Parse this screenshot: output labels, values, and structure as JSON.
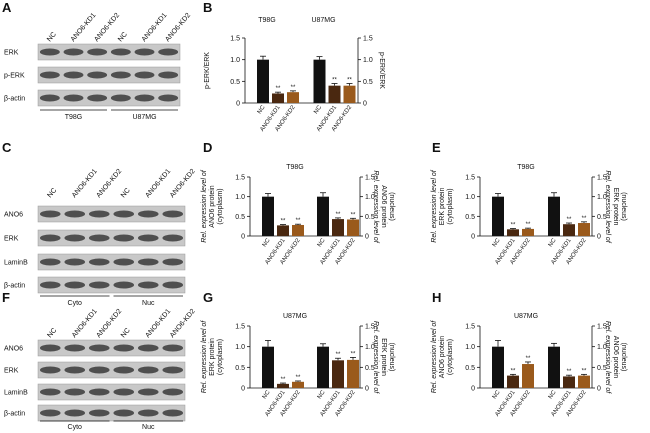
{
  "blots": [
    {
      "panel": "A",
      "lanes": [
        "NC",
        "ANO6-KD1",
        "ANO6-KD2",
        "NC",
        "ANO6-KD1",
        "ANO6-KD2"
      ],
      "rows": [
        "ERK",
        "p-ERK",
        "β-actin"
      ],
      "groups": [
        "T98G",
        "U87MG"
      ]
    },
    {
      "panel": "C",
      "lanes": [
        "NC",
        "ANO6-KD1",
        "ANO6-KD2",
        "NC",
        "ANO6-KD1",
        "ANO6-KD2"
      ],
      "rows": [
        "ANO6",
        "ERK",
        "LaminB",
        "β-actin"
      ],
      "groups": [
        "Cyto",
        "Nuc"
      ]
    },
    {
      "panel": "F",
      "lanes": [
        "NC",
        "ANO6-KD1",
        "ANO6-KD2",
        "NC",
        "ANO6-KD1",
        "ANO6-KD2"
      ],
      "rows": [
        "ANO6",
        "ERK",
        "LaminB",
        "β-actin"
      ],
      "groups": [
        "Cyto",
        "Nuc"
      ]
    }
  ],
  "chart_data": [
    {
      "type": "bar",
      "panel": "B",
      "colors": [
        "#111111",
        "#4a2810",
        "#9a5a1c"
      ],
      "ylim": [
        0,
        1.5
      ],
      "yticks": [
        0,
        0.5,
        {
          "value": 1,
          "label": "1.0"
        },
        1.5
      ],
      "y2lim": [
        0,
        1.5
      ],
      "y2ticks": [
        0,
        0.5,
        {
          "value": 1,
          "label": "1.0"
        },
        1.5
      ],
      "groups": [
        {
          "title": "T98G",
          "axis": "y",
          "ylabel": [
            "p-ERK/ERK"
          ],
          "categories": [
            "NC",
            "ANO6-KD1",
            "ANO6-KD2"
          ],
          "values": [
            1.0,
            0.22,
            0.25
          ],
          "errors": [
            0.08,
            0.03,
            0.03
          ],
          "annotations": [
            null,
            "**",
            "**"
          ]
        },
        {
          "title": "U87MG",
          "axis": "y2",
          "ylabel": [
            "p-ERK/ERK"
          ],
          "categories": [
            "NC",
            "ANO6-KD1",
            "ANO6-KD2"
          ],
          "values": [
            1.0,
            0.4,
            0.4
          ],
          "errors": [
            0.07,
            0.05,
            0.05
          ],
          "annotations": [
            null,
            "**",
            "**"
          ]
        }
      ]
    },
    {
      "type": "bar",
      "panel": "D",
      "title": "T98G",
      "colors": [
        "#111111",
        "#4a2810",
        "#9a5a1c"
      ],
      "ylim": [
        0,
        1.5
      ],
      "yticks": [
        0,
        0.5,
        {
          "value": 1,
          "label": "1.0"
        },
        1.5
      ],
      "y2lim": [
        0,
        1.5
      ],
      "y2ticks": [
        0,
        0.5,
        {
          "value": 1,
          "label": "1.0"
        },
        1.5
      ],
      "groups": [
        {
          "axis": "y",
          "ylabel": [
            "Rel. expression level of",
            "ANO6 protein",
            "(cytoplasm)"
          ],
          "categories": [
            "NC",
            "ANO6-KD1",
            "ANO6-KD2"
          ],
          "values": [
            1.0,
            0.27,
            0.28
          ],
          "errors": [
            0.08,
            0.02,
            0.02
          ],
          "annotations": [
            null,
            "**",
            "**"
          ]
        },
        {
          "axis": "y2",
          "ylabel": [
            "Rel. expression level of",
            "ANO6 protein",
            "(nucleus)"
          ],
          "categories": [
            "NC",
            "ANO6-KD1",
            "ANO6-KD2"
          ],
          "values": [
            1.0,
            0.43,
            0.42
          ],
          "errors": [
            0.1,
            0.03,
            0.03
          ],
          "annotations": [
            null,
            "**",
            "**"
          ]
        }
      ]
    },
    {
      "type": "bar",
      "panel": "E",
      "title": "T98G",
      "colors": [
        "#111111",
        "#4a2810",
        "#9a5a1c"
      ],
      "ylim": [
        0,
        1.5
      ],
      "yticks": [
        0,
        0.5,
        {
          "value": 1,
          "label": "1.0"
        },
        1.5
      ],
      "y2lim": [
        0,
        1.5
      ],
      "y2ticks": [
        0,
        0.5,
        {
          "value": 1,
          "label": "1.0"
        },
        1.5
      ],
      "groups": [
        {
          "axis": "y",
          "ylabel": [
            "Rel. expression level of",
            "ERK protein",
            "(cytoplasm)"
          ],
          "categories": [
            "NC",
            "ANO6-KD1",
            "ANO6-KD2"
          ],
          "values": [
            1.0,
            0.17,
            0.18
          ],
          "errors": [
            0.08,
            0.02,
            0.02
          ],
          "annotations": [
            null,
            "**",
            "**"
          ]
        },
        {
          "axis": "y2",
          "ylabel": [
            "Rel. expression level of",
            "ERK protein",
            "(nucleus)"
          ],
          "categories": [
            "NC",
            "ANO6-KD1",
            "ANO6-KD2"
          ],
          "values": [
            1.0,
            0.3,
            0.33
          ],
          "errors": [
            0.1,
            0.03,
            0.03
          ],
          "annotations": [
            null,
            "**",
            "**"
          ]
        }
      ]
    },
    {
      "type": "bar",
      "panel": "G",
      "title": "U87MG",
      "colors": [
        "#111111",
        "#4a2810",
        "#9a5a1c"
      ],
      "ylim": [
        0,
        1.5
      ],
      "yticks": [
        0,
        0.5,
        {
          "value": 1,
          "label": "1.0"
        },
        1.5
      ],
      "y2lim": [
        0,
        1.5
      ],
      "y2ticks": [
        0,
        0.5,
        {
          "value": 1,
          "label": "1.0"
        },
        1.5
      ],
      "groups": [
        {
          "axis": "y",
          "ylabel": [
            "Rel. expression level of",
            "ERK protein",
            "(cytoplasm)"
          ],
          "categories": [
            "NC",
            "ANO6-KD1",
            "ANO6-KD2"
          ],
          "values": [
            1.0,
            0.1,
            0.15
          ],
          "errors": [
            0.15,
            0.02,
            0.02
          ],
          "annotations": [
            null,
            "**",
            "**"
          ]
        },
        {
          "axis": "y2",
          "ylabel": [
            "Rel. expression level of",
            "ERK protein",
            "(nucleus)"
          ],
          "categories": [
            "NC",
            "ANO6-KD1",
            "ANO6-KD2"
          ],
          "values": [
            1.0,
            0.67,
            0.68
          ],
          "errors": [
            0.07,
            0.05,
            0.06
          ],
          "annotations": [
            null,
            "**",
            "**"
          ]
        }
      ]
    },
    {
      "type": "bar",
      "panel": "H",
      "title": "U87MG",
      "colors": [
        "#111111",
        "#4a2810",
        "#9a5a1c"
      ],
      "ylim": [
        0,
        1.5
      ],
      "yticks": [
        0,
        0.5,
        {
          "value": 1,
          "label": "1.0"
        },
        1.5
      ],
      "y2lim": [
        0,
        1.5
      ],
      "y2ticks": [
        0,
        0.5,
        {
          "value": 1,
          "label": "1.0"
        },
        1.5
      ],
      "groups": [
        {
          "axis": "y",
          "ylabel": [
            "Rel. expression level of",
            "ANO6 protein",
            "(cytoplasm)"
          ],
          "categories": [
            "NC",
            "ANO6-KD1",
            "ANO6-KD2"
          ],
          "values": [
            1.0,
            0.3,
            0.58
          ],
          "errors": [
            0.15,
            0.03,
            0.05
          ],
          "annotations": [
            null,
            "**",
            "**"
          ]
        },
        {
          "axis": "y2",
          "ylabel": [
            "Rel. expression level of",
            "ANO6 protein",
            "(nucleus)"
          ],
          "categories": [
            "NC",
            "ANO6-KD1",
            "ANO6-KD2"
          ],
          "values": [
            1.0,
            0.28,
            0.3
          ],
          "errors": [
            0.08,
            0.03,
            0.03
          ],
          "annotations": [
            null,
            "**",
            "**"
          ]
        }
      ]
    }
  ]
}
